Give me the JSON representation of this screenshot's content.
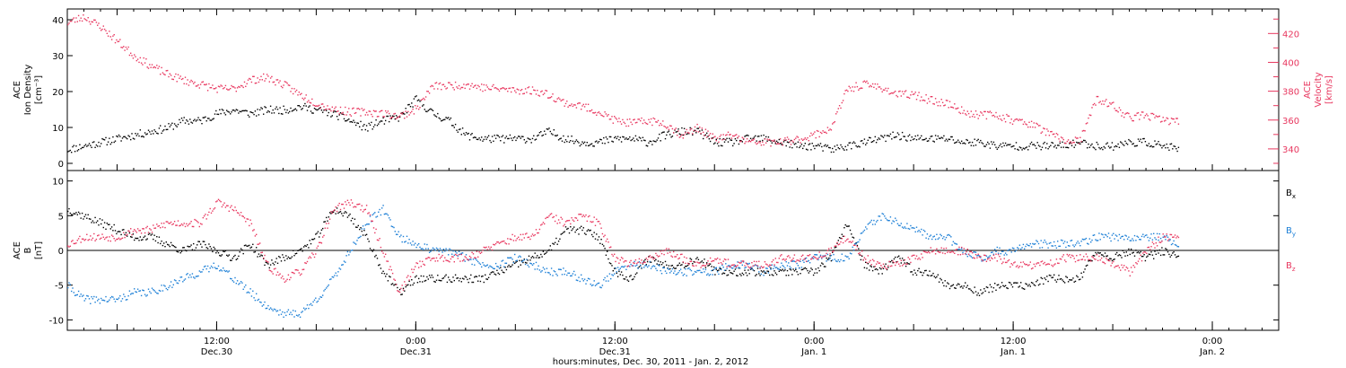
{
  "colors": {
    "black": "#000000",
    "red": "#e8375f",
    "blue": "#1c7fd6"
  },
  "chart_data": [
    {
      "type": "scatter",
      "panel": "top",
      "ylabel_lines": [
        "ACE",
        "Ion Density",
        "[cm⁻³]"
      ],
      "ylabel_right_lines": [
        "ACE",
        "Velocity",
        "[km/s]"
      ],
      "x_hours_range": [
        0,
        73
      ],
      "ylim": [
        -2,
        43
      ],
      "y_ticks": [
        0,
        10,
        20,
        30,
        40
      ],
      "y2lim": [
        325,
        437
      ],
      "y2_ticks": [
        340,
        360,
        380,
        400,
        420
      ],
      "series": [
        {
          "color": "black",
          "axis": "left",
          "x": [
            0,
            1,
            2,
            3,
            4,
            5,
            6,
            7,
            8,
            9,
            10,
            11,
            12,
            13,
            14,
            15,
            16,
            17,
            18,
            19,
            20,
            21,
            22,
            23,
            24,
            25,
            26,
            27,
            28,
            29,
            30,
            31,
            32,
            33,
            34,
            35,
            36,
            37,
            38,
            39,
            40,
            41,
            42,
            43,
            44,
            45,
            46,
            47,
            48,
            49,
            50,
            51,
            52,
            53,
            54,
            55,
            56,
            57,
            58,
            59,
            60,
            61,
            62,
            63,
            64,
            65,
            66,
            67
          ],
          "y": [
            4,
            5,
            6,
            7,
            8,
            9,
            10,
            12,
            12,
            14,
            15,
            14,
            15,
            15,
            16,
            15,
            14,
            12,
            10,
            12,
            13,
            18,
            14,
            12,
            8,
            7,
            7,
            7,
            7,
            9,
            7,
            6,
            6,
            7,
            7,
            6,
            8,
            9,
            9,
            6,
            6,
            7,
            7,
            6,
            5,
            5,
            4,
            5,
            6,
            7,
            8,
            7,
            7,
            7,
            6,
            6,
            5,
            5,
            5,
            5,
            5,
            6,
            5,
            5,
            6,
            6,
            5,
            4
          ]
        },
        {
          "color": "red",
          "axis": "right",
          "x": [
            0,
            1,
            2,
            3,
            4,
            5,
            6,
            7,
            8,
            9,
            10,
            11,
            12,
            13,
            14,
            15,
            16,
            17,
            18,
            19,
            20,
            21,
            22,
            23,
            24,
            25,
            26,
            27,
            28,
            29,
            30,
            31,
            32,
            33,
            34,
            35,
            36,
            37,
            38,
            39,
            40,
            41,
            42,
            43,
            44,
            45,
            46,
            47,
            48,
            49,
            50,
            51,
            52,
            53,
            54,
            55,
            56,
            57,
            58,
            59,
            60,
            61,
            62,
            63,
            64,
            65,
            66,
            67
          ],
          "y": [
            428,
            432,
            425,
            415,
            405,
            398,
            392,
            388,
            385,
            382,
            382,
            388,
            390,
            385,
            378,
            372,
            368,
            366,
            366,
            365,
            363,
            368,
            384,
            384,
            385,
            383,
            382,
            381,
            381,
            378,
            372,
            370,
            366,
            360,
            358,
            360,
            358,
            350,
            355,
            347,
            350,
            345,
            345,
            345,
            347,
            350,
            355,
            382,
            385,
            383,
            378,
            378,
            374,
            372,
            366,
            364,
            364,
            360,
            358,
            352,
            346,
            346,
            375,
            370,
            362,
            364,
            360,
            360
          ]
        }
      ]
    },
    {
      "type": "scatter",
      "panel": "bottom",
      "ylabel_lines": [
        "ACE",
        "B",
        "[nT]"
      ],
      "x_hours_range": [
        0,
        73
      ],
      "ylim": [
        -11.5,
        11.5
      ],
      "y_ticks": [
        -10,
        -5,
        0,
        5,
        10
      ],
      "zero_line": true,
      "legend": [
        "Bx",
        "By",
        "Bz"
      ],
      "xlabel": "hours:minutes, Dec. 30, 2011 - Jan. 2, 2012",
      "x_ticks": [
        {
          "hour": 9,
          "time": "12:00",
          "date": "Dec.30"
        },
        {
          "hour": 21,
          "time": "0:00",
          "date": "Dec.31"
        },
        {
          "hour": 33,
          "time": "12:00",
          "date": "Dec.31"
        },
        {
          "hour": 45,
          "time": "0:00",
          "date": "Jan. 1"
        },
        {
          "hour": 57,
          "time": "12:00",
          "date": "Jan. 1"
        },
        {
          "hour": 69,
          "time": "0:00",
          "date": "Jan. 2"
        }
      ],
      "series": [
        {
          "name": "Bx",
          "color": "black",
          "x": [
            0,
            1,
            2,
            3,
            4,
            5,
            6,
            7,
            8,
            9,
            10,
            11,
            12,
            13,
            14,
            15,
            16,
            17,
            18,
            19,
            20,
            21,
            22,
            23,
            24,
            25,
            26,
            27,
            28,
            29,
            30,
            31,
            32,
            33,
            34,
            35,
            36,
            37,
            38,
            39,
            40,
            41,
            42,
            43,
            44,
            45,
            46,
            47,
            48,
            49,
            50,
            51,
            52,
            53,
            54,
            55,
            56,
            57,
            58,
            59,
            60,
            61,
            62,
            63,
            64,
            65,
            66,
            67
          ],
          "y": [
            6,
            5,
            4,
            3,
            2,
            2,
            1,
            0,
            1,
            0,
            -1,
            1,
            -2,
            -1,
            0,
            2,
            6,
            5,
            2,
            -3,
            -6,
            -4,
            -4,
            -4,
            -4,
            -4,
            -3,
            -2,
            -1,
            0,
            3,
            3,
            2,
            -3,
            -4,
            -1,
            -2,
            -2,
            -1,
            -3,
            -3,
            -3,
            -3,
            -3,
            -3,
            -3,
            -1,
            4,
            -2,
            -3,
            -1,
            -3,
            -3,
            -5,
            -5,
            -6,
            -5,
            -5,
            -5,
            -4,
            -4,
            -4,
            0,
            -1,
            0,
            -1,
            0,
            -1
          ]
        },
        {
          "name": "By",
          "color": "blue",
          "x": [
            0,
            1,
            2,
            3,
            4,
            5,
            6,
            7,
            8,
            9,
            10,
            11,
            12,
            13,
            14,
            15,
            16,
            17,
            18,
            19,
            20,
            21,
            22,
            23,
            24,
            25,
            26,
            27,
            28,
            29,
            30,
            31,
            32,
            33,
            34,
            35,
            36,
            37,
            38,
            39,
            40,
            41,
            42,
            43,
            44,
            45,
            46,
            47,
            48,
            49,
            50,
            51,
            52,
            53,
            54,
            55,
            56,
            57,
            58,
            59,
            60,
            61,
            62,
            63,
            64,
            65,
            66,
            67
          ],
          "y": [
            -5,
            -7,
            -7,
            -7,
            -6,
            -6,
            -5,
            -4,
            -3,
            -2,
            -4,
            -6,
            -8,
            -9,
            -9,
            -7,
            -4,
            0,
            4,
            6,
            2,
            1,
            0,
            0,
            -1,
            -2,
            -2,
            -1,
            -2,
            -3,
            -3,
            -4,
            -5,
            -3,
            -2,
            -2,
            -3,
            -3,
            -3,
            -3,
            -2,
            -2,
            -3,
            -2,
            -2,
            -1,
            -1,
            -1,
            3,
            5,
            4,
            3,
            2,
            2,
            0,
            -1,
            0,
            0,
            1,
            1,
            1,
            1,
            2,
            2,
            2,
            2,
            2,
            1
          ]
        },
        {
          "name": "Bz",
          "color": "red",
          "x": [
            0,
            1,
            2,
            3,
            4,
            5,
            6,
            7,
            8,
            9,
            10,
            11,
            12,
            13,
            14,
            15,
            16,
            17,
            18,
            19,
            20,
            21,
            22,
            23,
            24,
            25,
            26,
            27,
            28,
            29,
            30,
            31,
            32,
            33,
            34,
            35,
            36,
            37,
            38,
            39,
            40,
            41,
            42,
            43,
            44,
            45,
            46,
            47,
            48,
            49,
            50,
            51,
            52,
            53,
            54,
            55,
            56,
            57,
            58,
            59,
            60,
            61,
            62,
            63,
            64,
            65,
            66,
            67
          ],
          "y": [
            1,
            2,
            2,
            2,
            3,
            3,
            4,
            4,
            4,
            7,
            6,
            4,
            -2,
            -4,
            -3,
            0,
            6,
            7,
            6,
            0,
            -6,
            -2,
            -1,
            -1,
            -1,
            0,
            1,
            2,
            2,
            5,
            4,
            5,
            4,
            -1,
            -2,
            -1,
            0,
            -1,
            -2,
            -1,
            -2,
            -2,
            -2,
            -1,
            -1,
            -1,
            0,
            2,
            -1,
            -2,
            -2,
            -1,
            0,
            0,
            0,
            -1,
            -1,
            -2,
            -2,
            -2,
            -1,
            -1,
            -1,
            -2,
            -3,
            0,
            2,
            2
          ]
        }
      ]
    }
  ]
}
